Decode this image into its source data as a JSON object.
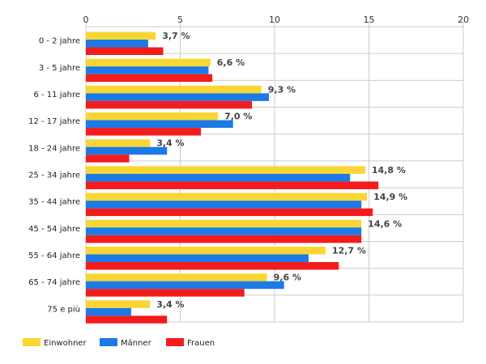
{
  "chart_data": {
    "type": "bar",
    "orientation": "horizontal",
    "categories": [
      "0 - 2 jahre",
      "3 - 5 jahre",
      "6 - 11 jahre",
      "12 - 17 jahre",
      "18 - 24 jahre",
      "25 - 34 jahre",
      "35 - 44 jahre",
      "45 - 54 jahre",
      "55 - 64 jahre",
      "65 - 74 jahre",
      "75 e più"
    ],
    "series": [
      {
        "name": "Einwohner",
        "color": "#f9d633",
        "values": [
          3.7,
          6.6,
          9.3,
          7.0,
          3.4,
          14.8,
          14.9,
          14.6,
          12.7,
          9.6,
          3.4
        ]
      },
      {
        "name": "Männer",
        "color": "#1b7ae6",
        "values": [
          3.3,
          6.5,
          9.7,
          7.8,
          4.3,
          14.0,
          14.6,
          14.6,
          11.8,
          10.5,
          2.4
        ]
      },
      {
        "name": "Frauen",
        "color": "#f31c1c",
        "values": [
          4.1,
          6.7,
          8.8,
          6.1,
          2.3,
          15.5,
          15.2,
          14.6,
          13.4,
          8.4,
          4.3
        ]
      }
    ],
    "data_labels": [
      "3,7 %",
      "6,6 %",
      "9,3 %",
      "7,0 %",
      "3,4 %",
      "14,8 %",
      "14,9 %",
      "14,6 %",
      "12,7 %",
      "9,6 %",
      "3,4 %"
    ],
    "x_ticks": [
      "0",
      "5",
      "10",
      "15",
      "20"
    ],
    "xlim": [
      0,
      20
    ],
    "grid": true,
    "legend_position": "bottom-left"
  }
}
